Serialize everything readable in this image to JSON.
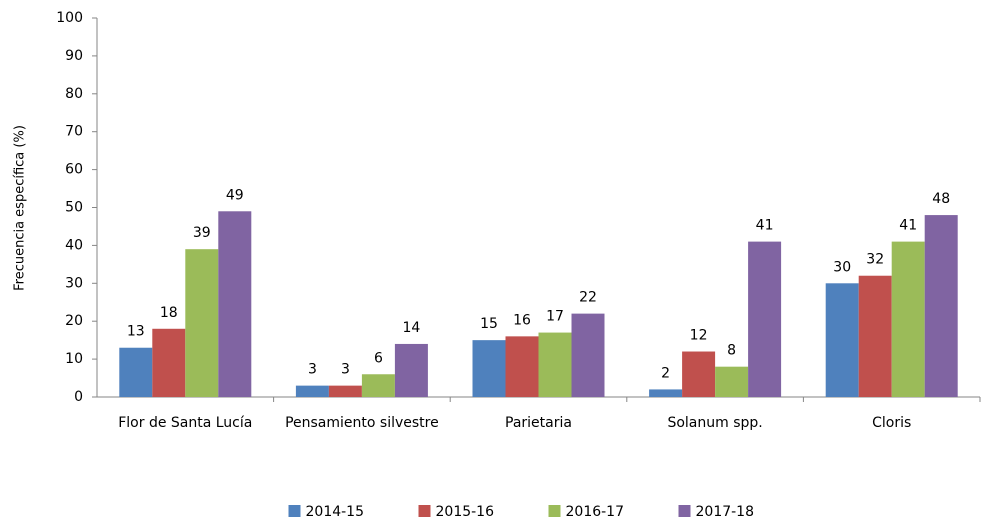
{
  "chart_data": {
    "type": "bar",
    "y_label": "Frecuencia específica (%)",
    "categories": [
      "Flor de Santa Lucía",
      "Pensamiento silvestre",
      "Parietaria",
      "Solanum spp.",
      "Cloris"
    ],
    "series": [
      {
        "name": "2014-15",
        "color": "#4f81bd",
        "values": [
          13,
          3,
          15,
          2,
          30
        ]
      },
      {
        "name": "2015-16",
        "color": "#c0504d",
        "values": [
          18,
          3,
          16,
          12,
          32
        ]
      },
      {
        "name": "2016-17",
        "color": "#9bbb59",
        "values": [
          39,
          6,
          17,
          8,
          41
        ]
      },
      {
        "name": "2017-18",
        "color": "#8064a2",
        "values": [
          49,
          14,
          22,
          41,
          48
        ]
      }
    ],
    "ylim": [
      0,
      100
    ],
    "yticks": [
      0,
      10,
      20,
      30,
      40,
      50,
      60,
      70,
      80,
      90,
      100
    ],
    "grid": false,
    "legend": "bottom"
  }
}
